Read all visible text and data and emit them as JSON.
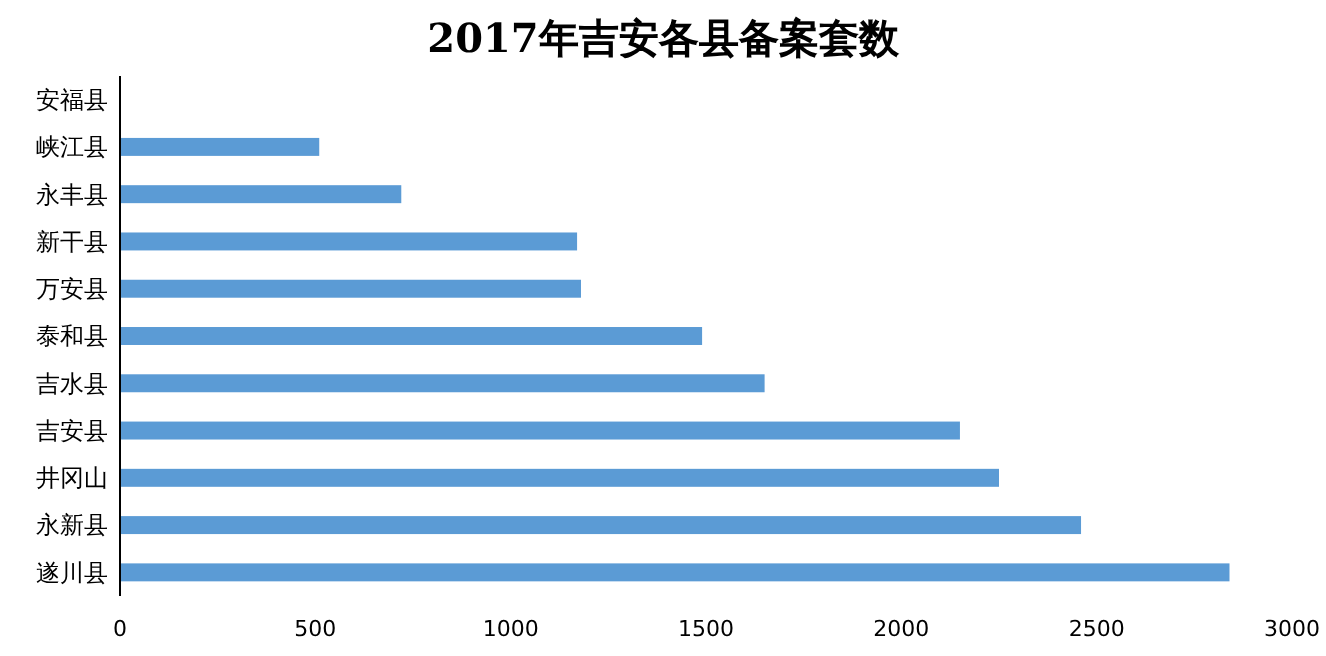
{
  "chart_data": {
    "type": "bar",
    "orientation": "horizontal",
    "title": "2017年吉安各县备案套数",
    "categories": [
      "安福县",
      "峡江县",
      "永丰县",
      "新干县",
      "万安县",
      "泰和县",
      "吉水县",
      "吉安县",
      "井冈山",
      "永新县",
      "遂川县"
    ],
    "values": [
      0,
      510,
      720,
      1170,
      1180,
      1490,
      1650,
      2150,
      2250,
      2460,
      2840
    ],
    "color": "#5b9bd5",
    "xlim": [
      0,
      3000
    ],
    "xticks": [
      0,
      500,
      1000,
      1500,
      2000,
      2500,
      3000
    ],
    "grid": false
  }
}
